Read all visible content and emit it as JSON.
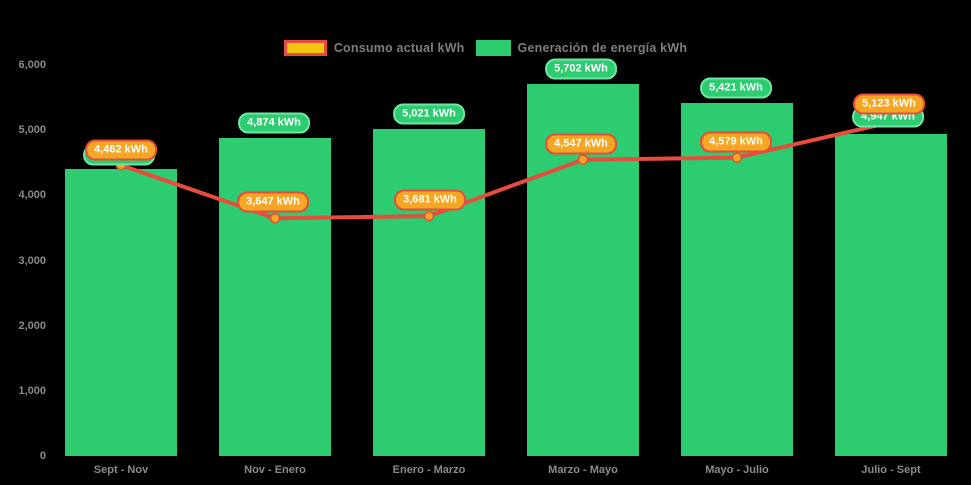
{
  "legend": {
    "items": [
      {
        "id": "consumo",
        "label": "Consumo actual kWh"
      },
      {
        "id": "generacion",
        "label": "Generación de energía kWh"
      }
    ]
  },
  "chart_data": {
    "type": "combo-bar-line",
    "categories": [
      "Sept - Nov",
      "Nov - Enero",
      "Enero - Marzo",
      "Marzo - Mayo",
      "Mayo - Julio",
      "Julio - Sept"
    ],
    "series": [
      {
        "name": "Generación de energía kWh",
        "type": "bar",
        "color": "#2ecc71",
        "values": [
          4400,
          4874,
          5021,
          5702,
          5421,
          4947
        ],
        "labels": [
          "4,400 kWh",
          "4,874 kWh",
          "5,021 kWh",
          "5,702 kWh",
          "5,421 kWh",
          "4,947 kWh"
        ]
      },
      {
        "name": "Consumo actual kWh",
        "type": "line",
        "color": "#e74c3c",
        "point_color": "#f5a623",
        "values": [
          4462,
          3647,
          3681,
          4547,
          4579,
          5123
        ],
        "labels": [
          "4,462 kWh",
          "3,647 kWh",
          "3,681 kWh",
          "4,547 kWh",
          "4,579 kWh",
          "5,123 kWh"
        ]
      }
    ],
    "y_axis": {
      "min": 0,
      "max": 6000,
      "ticks": [
        {
          "label": "6,000",
          "value": 6000
        },
        {
          "label": "5,000",
          "value": 5000
        },
        {
          "label": "4,000",
          "value": 4000
        },
        {
          "label": "3,000",
          "value": 3000
        },
        {
          "label": "2,000",
          "value": 2000
        },
        {
          "label": "1,000",
          "value": 1000
        },
        {
          "label": "0",
          "value": 0
        }
      ]
    },
    "grid": false,
    "legend_position": "top-center"
  },
  "colors": {
    "background": "#000000",
    "bar_green": "#2ecc71",
    "line_red": "#e74c3c",
    "point_orange": "#f5a623",
    "badge_green_bg": "#2ecc71",
    "badge_green_border": "#6ee7a5",
    "badge_orange_bg": "#f5a623",
    "badge_orange_border": "#e74c3c",
    "legend_swatch_yellow": "#f1c40f",
    "axis_text": "#8a8a8a",
    "legend_text": "#7d7d7d"
  }
}
